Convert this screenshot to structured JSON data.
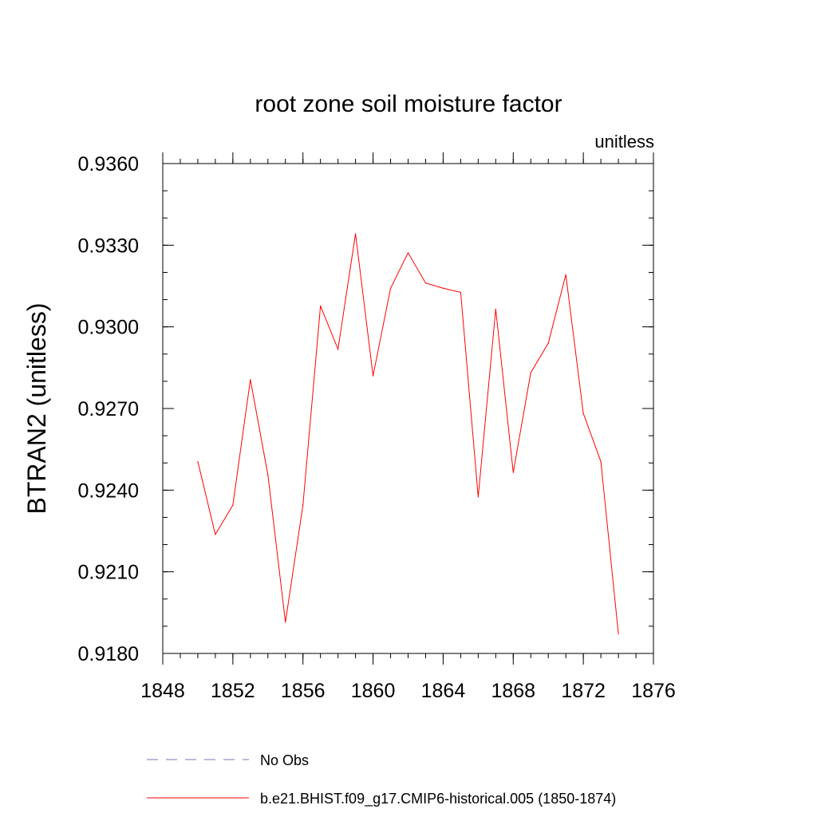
{
  "chart_data": {
    "type": "line",
    "title": "root zone soil moisture factor",
    "units_label": "unitless",
    "ylabel": "BTRAN2  (unitless)",
    "xlabel": "",
    "xlim": [
      1848,
      1876
    ],
    "ylim": [
      0.918,
      0.936
    ],
    "x_ticks": [
      1848,
      1852,
      1856,
      1860,
      1864,
      1868,
      1872,
      1876
    ],
    "x_tick_labels": [
      "1848",
      "1852",
      "1856",
      "1860",
      "1864",
      "1868",
      "1872",
      "1876"
    ],
    "y_ticks": [
      0.918,
      0.921,
      0.924,
      0.927,
      0.93,
      0.933,
      0.936
    ],
    "y_tick_labels": [
      "0.9180",
      "0.9210",
      "0.9240",
      "0.9270",
      "0.9300",
      "0.9330",
      "0.9360"
    ],
    "grid": false,
    "legend_position": "bottom",
    "series": [
      {
        "name": "No Obs",
        "color": "#7777bb",
        "dash": "dashed",
        "x": [],
        "values": []
      },
      {
        "name": "b.e21.BHIST.f09_g17.CMIP6-historical.005 (1850-1874)",
        "color": "#ff0000",
        "dash": "solid",
        "x": [
          1850,
          1851,
          1852,
          1853,
          1854,
          1855,
          1856,
          1857,
          1858,
          1859,
          1860,
          1861,
          1862,
          1863,
          1864,
          1865,
          1866,
          1867,
          1868,
          1869,
          1870,
          1871,
          1872,
          1873,
          1874
        ],
        "values": [
          0.92505,
          0.92237,
          0.92345,
          0.92806,
          0.92456,
          0.91915,
          0.92345,
          0.93077,
          0.92918,
          0.93342,
          0.9282,
          0.93142,
          0.93272,
          0.93161,
          0.93142,
          0.93127,
          0.92375,
          0.93065,
          0.92465,
          0.92832,
          0.9294,
          0.93192,
          0.92682,
          0.92505,
          0.91872
        ]
      }
    ]
  }
}
